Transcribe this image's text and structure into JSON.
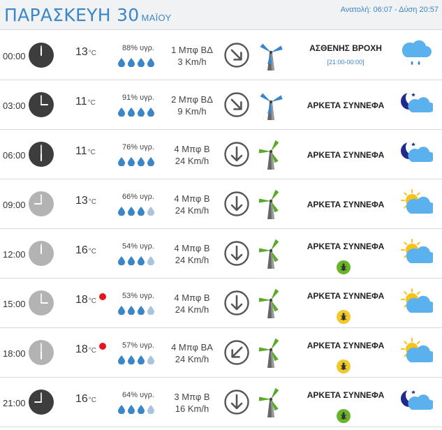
{
  "header": {
    "day": "ΠΑΡΑΣΚΕΥΗ 30",
    "month": "ΜΑΪΟΥ",
    "sun_info": "Ανατολή: 06:07 - Δύση 20:57"
  },
  "colors": {
    "accent": "#3a86c8",
    "clock_night": "#3d3d3d",
    "clock_day": "#b3b3b3",
    "drop_full": "#3a86c8",
    "drop_empty": "#a9c5dd",
    "hot_dot": "#e8141c",
    "turbine_blue": "#3a86c8",
    "turbine_green": "#5aaa2a",
    "badge_green": "#6ab42a",
    "badge_yellow": "#f2c92b"
  },
  "deg_unit": "°C",
  "rows": [
    {
      "time": "00:00",
      "temp": "13",
      "humidity": "88% υγρ.",
      "drops": 4,
      "wind_force": "1 Μπφ ΒΔ",
      "wind_speed": "3 Km/h",
      "arrow": "arrow-down-right-icon",
      "hot": false,
      "condition": "ΑΣΘΕΝΗΣ ΒΡΟΧΗ",
      "condition_sub": "[21:00-00:00]",
      "badge": null,
      "weather_icon": "rain-cloud-icon",
      "clock": "night"
    },
    {
      "time": "03:00",
      "temp": "11",
      "humidity": "91% υγρ.",
      "drops": 4,
      "wind_force": "2 Μπφ ΒΔ",
      "wind_speed": "9 Km/h",
      "arrow": "arrow-down-right-icon",
      "hot": false,
      "condition": "ΑΡΚΕΤΑ ΣΥΝΝΕΦΑ",
      "condition_sub": null,
      "badge": null,
      "weather_icon": "moon-cloud-icon",
      "clock": "night"
    },
    {
      "time": "06:00",
      "temp": "11",
      "humidity": "76% υγρ.",
      "drops": 4,
      "wind_force": "4 Μπφ Β",
      "wind_speed": "24 Km/h",
      "arrow": "arrow-down-icon",
      "hot": false,
      "condition": "ΑΡΚΕΤΑ ΣΥΝΝΕΦΑ",
      "condition_sub": null,
      "badge": null,
      "weather_icon": "moon-cloud-icon",
      "clock": "night"
    },
    {
      "time": "09:00",
      "temp": "13",
      "humidity": "66% υγρ.",
      "drops": 3,
      "wind_force": "4 Μπφ Β",
      "wind_speed": "24 Km/h",
      "arrow": "arrow-down-icon",
      "hot": false,
      "condition": "ΑΡΚΕΤΑ ΣΥΝΝΕΦΑ",
      "condition_sub": null,
      "badge": null,
      "weather_icon": "sun-cloud-icon",
      "clock": "day"
    },
    {
      "time": "12:00",
      "temp": "16",
      "humidity": "54% υγρ.",
      "drops": 3,
      "wind_force": "4 Μπφ Β",
      "wind_speed": "24 Km/h",
      "arrow": "arrow-down-icon",
      "hot": false,
      "condition": "ΑΡΚΕΤΑ ΣΥΝΝΕΦΑ",
      "condition_sub": null,
      "badge": "green",
      "weather_icon": "sun-cloud-icon",
      "clock": "day"
    },
    {
      "time": "15:00",
      "temp": "18",
      "humidity": "53% υγρ.",
      "drops": 3,
      "wind_force": "4 Μπφ Β",
      "wind_speed": "24 Km/h",
      "arrow": "arrow-down-icon",
      "hot": true,
      "condition": "ΑΡΚΕΤΑ ΣΥΝΝΕΦΑ",
      "condition_sub": null,
      "badge": "yellow",
      "weather_icon": "sun-cloud-icon",
      "clock": "day"
    },
    {
      "time": "18:00",
      "temp": "18",
      "humidity": "57% υγρ.",
      "drops": 3,
      "wind_force": "4 Μπφ ΒΑ",
      "wind_speed": "24 Km/h",
      "arrow": "arrow-down-left-icon",
      "hot": true,
      "condition": "ΑΡΚΕΤΑ ΣΥΝΝΕΦΑ",
      "condition_sub": null,
      "badge": "yellow",
      "weather_icon": "sun-cloud-icon",
      "clock": "day"
    },
    {
      "time": "21:00",
      "temp": "16",
      "humidity": "64% υγρ.",
      "drops": 3,
      "wind_force": "3 Μπφ Β",
      "wind_speed": "16 Km/h",
      "arrow": "arrow-down-icon",
      "hot": false,
      "condition": "ΑΡΚΕΤΑ ΣΥΝΝΕΦΑ",
      "condition_sub": null,
      "badge": "green",
      "weather_icon": "moon-cloud-icon",
      "clock": "night"
    }
  ]
}
